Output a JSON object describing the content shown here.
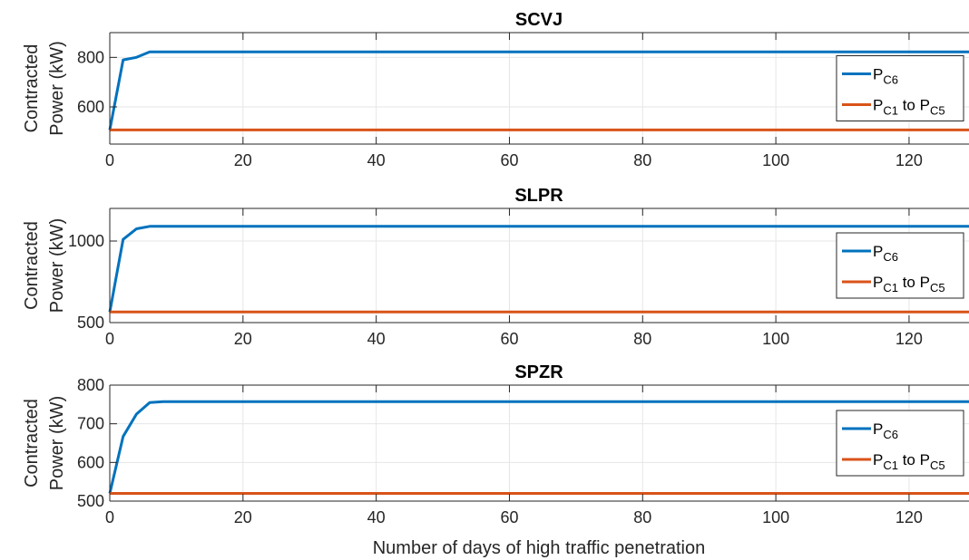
{
  "chart_data": [
    {
      "type": "line",
      "title": "SCVJ",
      "ylabel_line1": "Contracted",
      "ylabel_line2": "Power (kW)",
      "xlabel": "",
      "xlim": [
        0,
        129
      ],
      "ylim": [
        450,
        900
      ],
      "xticks": [
        0,
        20,
        40,
        60,
        80,
        100,
        120
      ],
      "yticks": [
        600,
        800
      ],
      "grid": true,
      "legend_position": "right",
      "series": [
        {
          "label_main": "P",
          "label_sub": "C6",
          "label_mid": "",
          "label_main2": "",
          "label_sub2": "",
          "color": "#0072BD",
          "x": [
            0,
            2,
            4,
            6,
            8,
            129
          ],
          "y": [
            507,
            790,
            800,
            822,
            822,
            822
          ]
        },
        {
          "label_main": "P",
          "label_sub": "C1",
          "label_mid": " to ",
          "label_main2": "P",
          "label_sub2": "C5",
          "color": "#D95319",
          "x": [
            0,
            129
          ],
          "y": [
            507,
            507
          ]
        }
      ]
    },
    {
      "type": "line",
      "title": "SLPR",
      "ylabel_line1": "Contracted",
      "ylabel_line2": "Power (kW)",
      "xlabel": "",
      "xlim": [
        0,
        129
      ],
      "ylim": [
        500,
        1200
      ],
      "xticks": [
        0,
        20,
        40,
        60,
        80,
        100,
        120
      ],
      "yticks": [
        500,
        1000
      ],
      "grid": true,
      "legend_position": "right",
      "series": [
        {
          "label_main": "P",
          "label_sub": "C6",
          "label_mid": "",
          "label_main2": "",
          "label_sub2": "",
          "color": "#0072BD",
          "x": [
            0,
            2,
            4,
            6,
            8,
            129
          ],
          "y": [
            565,
            1010,
            1075,
            1090,
            1090,
            1090
          ]
        },
        {
          "label_main": "P",
          "label_sub": "C1",
          "label_mid": " to ",
          "label_main2": "P",
          "label_sub2": "C5",
          "color": "#D95319",
          "x": [
            0,
            129
          ],
          "y": [
            565,
            565
          ]
        }
      ]
    },
    {
      "type": "line",
      "title": "SPZR",
      "ylabel_line1": "Contracted",
      "ylabel_line2": "Power (kW)",
      "xlabel": "Number of days of high traffic penetration",
      "xlim": [
        0,
        129
      ],
      "ylim": [
        500,
        800
      ],
      "xticks": [
        0,
        20,
        40,
        60,
        80,
        100,
        120
      ],
      "yticks": [
        500,
        600,
        700,
        800
      ],
      "grid": true,
      "legend_position": "right",
      "series": [
        {
          "label_main": "P",
          "label_sub": "C6",
          "label_mid": "",
          "label_main2": "",
          "label_sub2": "",
          "color": "#0072BD",
          "x": [
            0,
            2,
            4,
            6,
            8,
            129
          ],
          "y": [
            520,
            667,
            725,
            755,
            757,
            757
          ]
        },
        {
          "label_main": "P",
          "label_sub": "C1",
          "label_mid": " to ",
          "label_main2": "P",
          "label_sub2": "C5",
          "color": "#D95319",
          "x": [
            0,
            129
          ],
          "y": [
            520,
            520
          ]
        }
      ]
    }
  ]
}
